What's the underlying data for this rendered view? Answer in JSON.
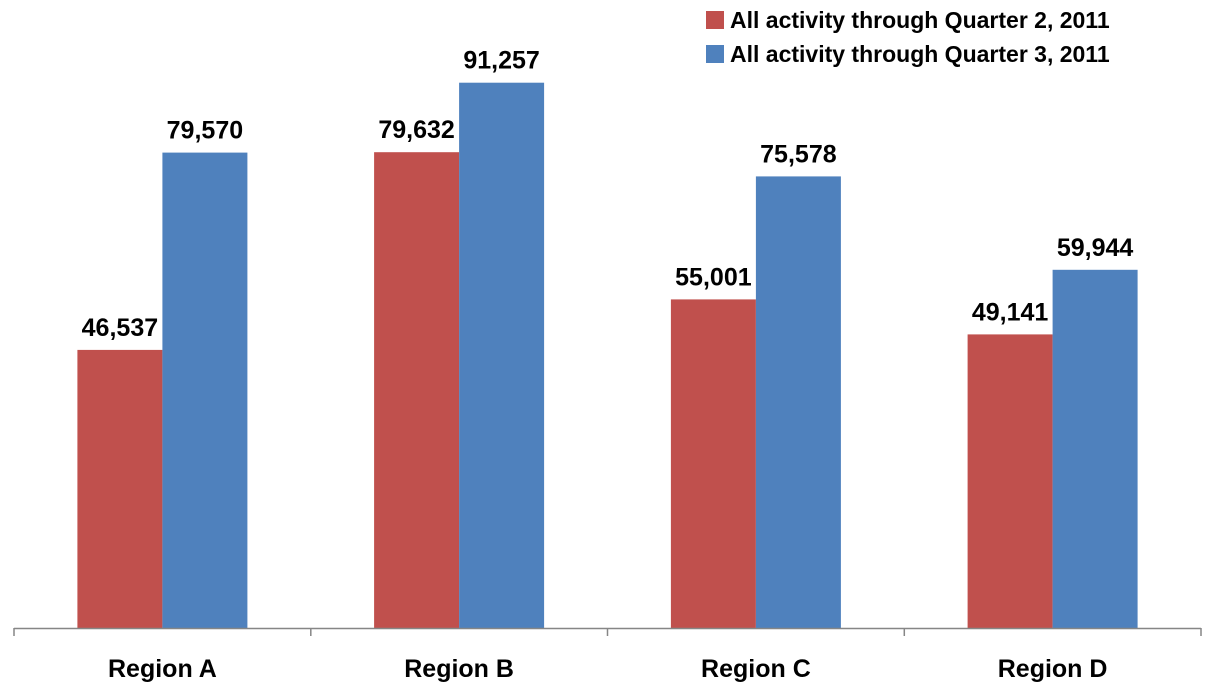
{
  "chart_data": {
    "type": "bar",
    "categories": [
      "Region A",
      "Region B",
      "Region C",
      "Region D"
    ],
    "series": [
      {
        "name": "All activity through Quarter 2, 2011",
        "values": [
          46537,
          79632,
          55001,
          49141
        ],
        "labels": [
          "46,537",
          "79,632",
          "55,001",
          "49,141"
        ],
        "color": "#C0504D"
      },
      {
        "name": "All activity through Quarter 3, 2011",
        "values": [
          79570,
          91257,
          75578,
          59944
        ],
        "labels": [
          "79,570",
          "91,257",
          "75,578",
          "59,944"
        ],
        "color": "#4F81BD"
      }
    ],
    "title": "",
    "xlabel": "",
    "ylabel": "",
    "ylim": [
      0,
      100000
    ],
    "grid": false,
    "legend": "top-right",
    "data_labels": true,
    "y_axis_visible": false
  },
  "colors": {
    "axis": "#868686",
    "text": "#000000",
    "background": "#FFFFFF"
  }
}
